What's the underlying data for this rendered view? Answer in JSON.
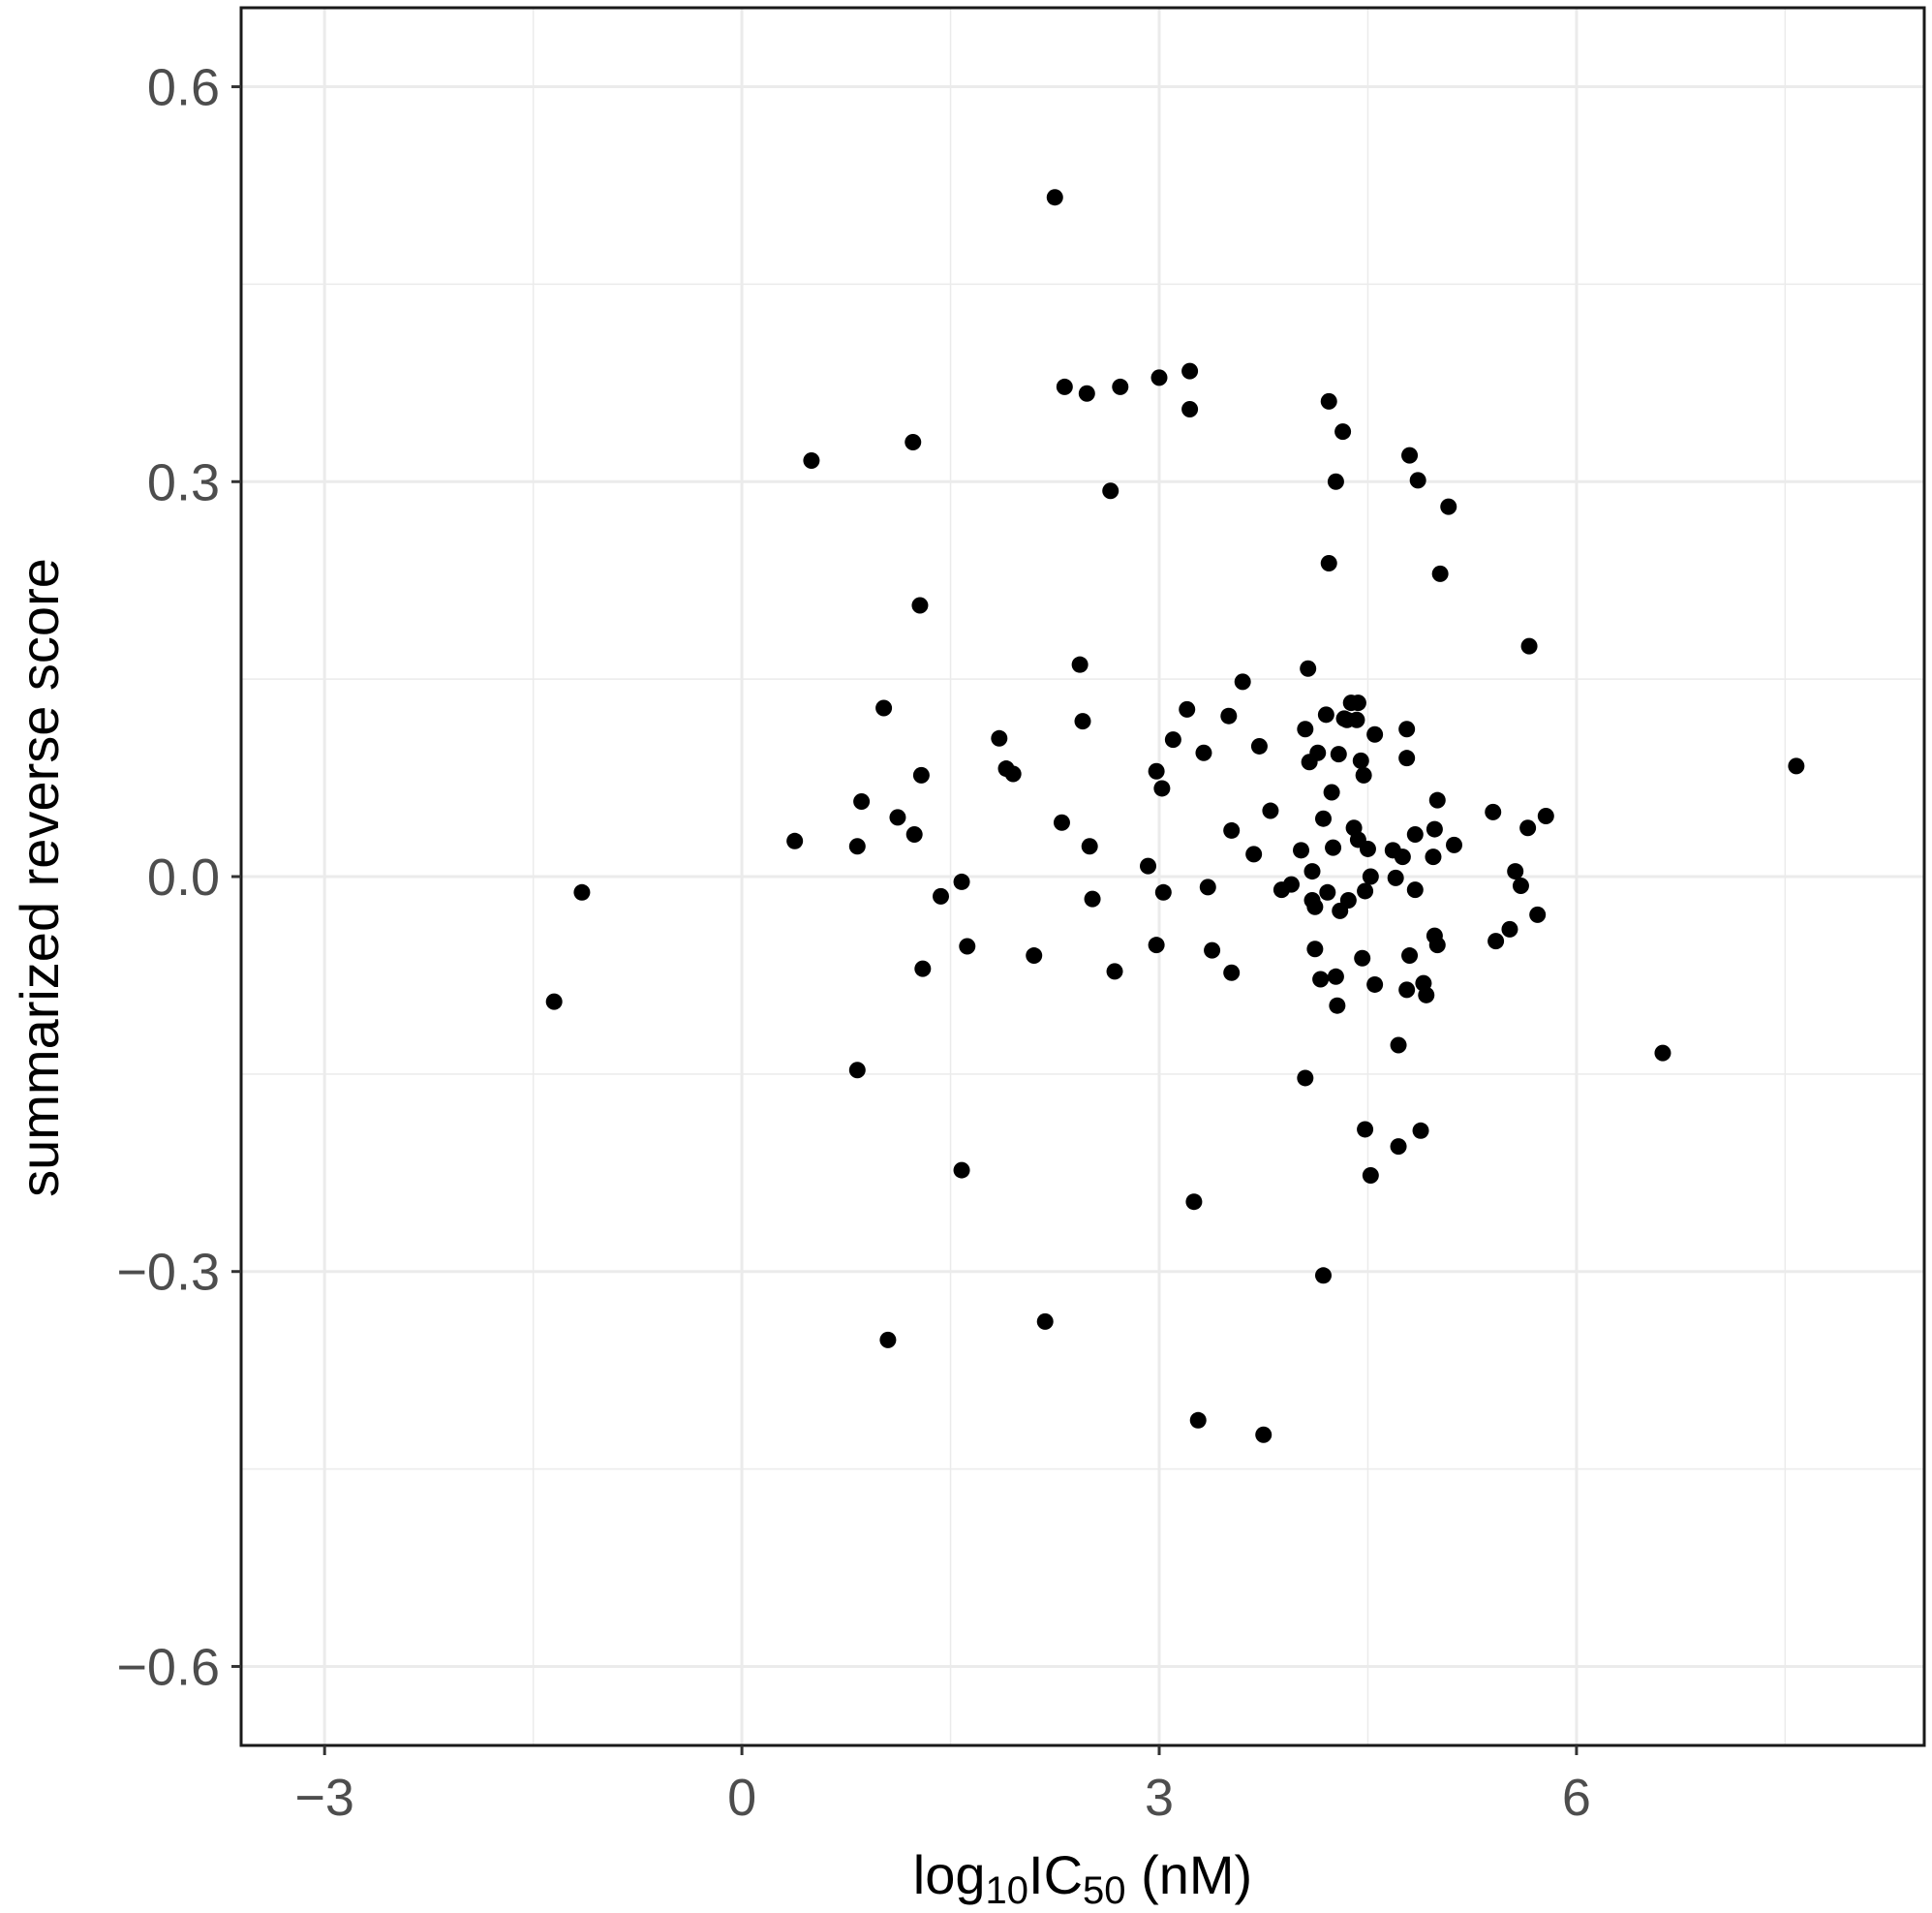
{
  "chart_data": {
    "type": "scatter",
    "title": "",
    "xlabel": "log10IC50 (nM)",
    "xlabel_parts": {
      "pre": "log",
      "sub1": "10",
      "mid": "IC",
      "sub2": "50",
      "post": " (nM)"
    },
    "ylabel": "summarized reverse score",
    "xlim": [
      -3.6,
      8.5
    ],
    "ylim": [
      -0.66,
      0.66
    ],
    "x_ticks": [
      -3,
      0,
      3,
      6
    ],
    "x_tick_labels": [
      "−3",
      "0",
      "3",
      "6"
    ],
    "y_ticks": [
      -0.6,
      -0.3,
      0.0,
      0.3,
      0.6
    ],
    "y_tick_labels": [
      "−0.6",
      "−0.3",
      "0.0",
      "0.3",
      "0.6"
    ],
    "grid": true,
    "point_color": "#000000",
    "grid_color": "#ebebeb",
    "points": [
      [
        -1.35,
        -0.095
      ],
      [
        -1.15,
        -0.012
      ],
      [
        0.38,
        0.027
      ],
      [
        0.5,
        0.316
      ],
      [
        0.83,
        0.023
      ],
      [
        0.86,
        0.057
      ],
      [
        0.83,
        -0.147
      ],
      [
        1.02,
        0.128
      ],
      [
        1.05,
        -0.352
      ],
      [
        1.12,
        0.045
      ],
      [
        1.23,
        0.33
      ],
      [
        1.24,
        0.032
      ],
      [
        1.28,
        0.206
      ],
      [
        1.29,
        0.077
      ],
      [
        1.3,
        -0.07
      ],
      [
        1.43,
        -0.015
      ],
      [
        1.58,
        -0.004
      ],
      [
        1.58,
        -0.223
      ],
      [
        1.62,
        -0.053
      ],
      [
        1.85,
        0.105
      ],
      [
        1.9,
        0.082
      ],
      [
        1.95,
        0.078
      ],
      [
        2.1,
        -0.06
      ],
      [
        2.18,
        -0.338
      ],
      [
        2.25,
        0.516
      ],
      [
        2.3,
        0.041
      ],
      [
        2.32,
        0.372
      ],
      [
        2.43,
        0.161
      ],
      [
        2.45,
        0.118
      ],
      [
        2.48,
        0.367
      ],
      [
        2.5,
        0.023
      ],
      [
        2.52,
        -0.017
      ],
      [
        2.65,
        0.293
      ],
      [
        2.68,
        -0.072
      ],
      [
        2.72,
        0.372
      ],
      [
        2.92,
        0.008
      ],
      [
        2.98,
        0.08
      ],
      [
        2.98,
        -0.052
      ],
      [
        3.0,
        0.379
      ],
      [
        3.02,
        0.067
      ],
      [
        3.03,
        -0.012
      ],
      [
        3.1,
        0.104
      ],
      [
        3.2,
        0.127
      ],
      [
        3.22,
        0.384
      ],
      [
        3.22,
        0.355
      ],
      [
        3.25,
        -0.247
      ],
      [
        3.28,
        -0.413
      ],
      [
        3.32,
        0.094
      ],
      [
        3.35,
        -0.008
      ],
      [
        3.38,
        -0.056
      ],
      [
        3.5,
        0.122
      ],
      [
        3.52,
        0.035
      ],
      [
        3.52,
        -0.073
      ],
      [
        3.6,
        0.148
      ],
      [
        3.68,
        0.017
      ],
      [
        3.72,
        0.099
      ],
      [
        3.75,
        -0.424
      ],
      [
        3.8,
        0.05
      ],
      [
        3.88,
        -0.01
      ],
      [
        3.95,
        -0.006
      ],
      [
        4.02,
        0.02
      ],
      [
        4.05,
        0.112
      ],
      [
        4.05,
        -0.153
      ],
      [
        4.07,
        0.158
      ],
      [
        4.08,
        0.087
      ],
      [
        4.1,
        0.004
      ],
      [
        4.1,
        -0.018
      ],
      [
        4.12,
        -0.023
      ],
      [
        4.12,
        -0.055
      ],
      [
        4.14,
        0.094
      ],
      [
        4.16,
        -0.078
      ],
      [
        4.18,
        0.044
      ],
      [
        4.18,
        -0.303
      ],
      [
        4.2,
        0.123
      ],
      [
        4.21,
        -0.012
      ],
      [
        4.22,
        0.361
      ],
      [
        4.22,
        0.238
      ],
      [
        4.24,
        0.064
      ],
      [
        4.25,
        0.022
      ],
      [
        4.27,
        0.3
      ],
      [
        4.27,
        -0.076
      ],
      [
        4.28,
        -0.098
      ],
      [
        4.29,
        0.093
      ],
      [
        4.3,
        -0.026
      ],
      [
        4.32,
        0.338
      ],
      [
        4.33,
        0.12
      ],
      [
        4.35,
        0.119
      ],
      [
        4.36,
        -0.018
      ],
      [
        4.38,
        0.132
      ],
      [
        4.4,
        0.037
      ],
      [
        4.42,
        0.119
      ],
      [
        4.43,
        0.132
      ],
      [
        4.43,
        0.028
      ],
      [
        4.45,
        0.088
      ],
      [
        4.46,
        -0.062
      ],
      [
        4.47,
        0.077
      ],
      [
        4.48,
        -0.192
      ],
      [
        4.48,
        -0.011
      ],
      [
        4.5,
        0.021
      ],
      [
        4.52,
        0.0
      ],
      [
        4.52,
        -0.227
      ],
      [
        4.55,
        0.108
      ],
      [
        4.55,
        -0.082
      ],
      [
        4.68,
        0.02
      ],
      [
        4.7,
        -0.001
      ],
      [
        4.72,
        -0.128
      ],
      [
        4.72,
        -0.205
      ],
      [
        4.75,
        0.015
      ],
      [
        4.78,
        0.112
      ],
      [
        4.78,
        0.09
      ],
      [
        4.78,
        -0.086
      ],
      [
        4.8,
        0.32
      ],
      [
        4.8,
        -0.06
      ],
      [
        4.84,
        0.032
      ],
      [
        4.84,
        -0.01
      ],
      [
        4.86,
        0.301
      ],
      [
        4.88,
        -0.193
      ],
      [
        4.9,
        -0.081
      ],
      [
        4.92,
        -0.09
      ],
      [
        4.97,
        0.015
      ],
      [
        4.98,
        0.036
      ],
      [
        4.98,
        -0.045
      ],
      [
        5.0,
        0.058
      ],
      [
        5.0,
        -0.052
      ],
      [
        5.02,
        0.23
      ],
      [
        5.08,
        0.281
      ],
      [
        5.12,
        0.024
      ],
      [
        5.4,
        0.049
      ],
      [
        5.42,
        -0.049
      ],
      [
        5.52,
        -0.04
      ],
      [
        5.56,
        0.004
      ],
      [
        5.6,
        -0.007
      ],
      [
        5.65,
        0.037
      ],
      [
        5.66,
        0.175
      ],
      [
        5.72,
        -0.029
      ],
      [
        5.78,
        0.046
      ],
      [
        6.62,
        -0.134
      ],
      [
        7.58,
        0.084
      ]
    ]
  }
}
